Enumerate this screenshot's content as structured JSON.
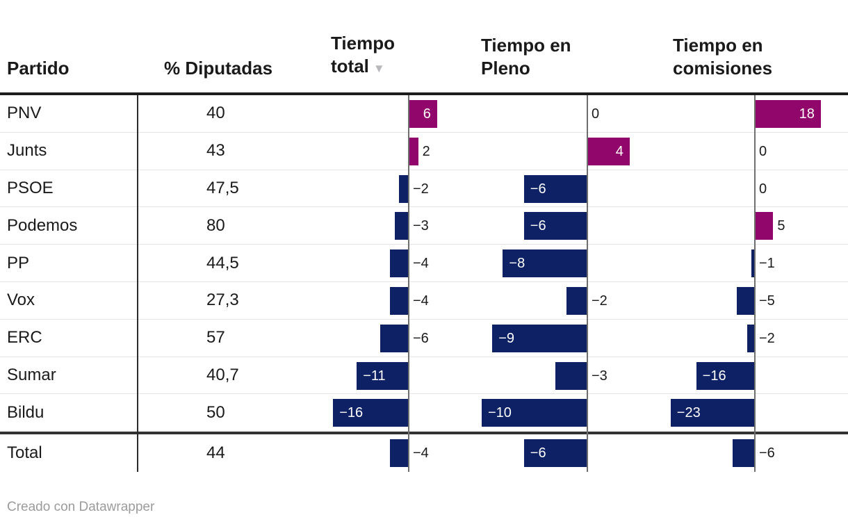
{
  "header": {
    "partido": "Partido",
    "diputadas": "% Diputadas",
    "tiempo_total_line1": "Tiempo",
    "tiempo_total_line2": "total",
    "sort_icon": "▼",
    "pleno_line1": "Tiempo en",
    "pleno_line2": "Pleno",
    "comisiones_line1": "Tiempo en",
    "comisiones_line2": "comisiones"
  },
  "footer": {
    "credit": "Creado con Datawrapper"
  },
  "colors": {
    "positive_bar": "#90066b",
    "negative_bar": "#0e2165",
    "zero_line": "#6e6e6e",
    "divider": "#2b2b2b",
    "row_separator": "#e4e4e4",
    "header_text": "#1a1a1a",
    "credit_text": "#9b9b9b"
  },
  "rows": [
    {
      "party": "PNV",
      "diputadas": "40",
      "total": {
        "v": 6,
        "label": "6",
        "inside": true
      },
      "pleno": {
        "v": 0,
        "label": "0",
        "inside": false
      },
      "comisiones": {
        "v": 18,
        "label": "18",
        "inside": true
      }
    },
    {
      "party": "Junts",
      "diputadas": "43",
      "total": {
        "v": 2,
        "label": "2",
        "inside": false
      },
      "pleno": {
        "v": 4,
        "label": "4",
        "inside": true
      },
      "comisiones": {
        "v": 0,
        "label": "0",
        "inside": false
      }
    },
    {
      "party": "PSOE",
      "diputadas": "47,5",
      "total": {
        "v": -2,
        "label": "−2",
        "inside": false
      },
      "pleno": {
        "v": -6,
        "label": "−6",
        "inside": true
      },
      "comisiones": {
        "v": 0,
        "label": "0",
        "inside": false
      }
    },
    {
      "party": "Podemos",
      "diputadas": "80",
      "total": {
        "v": -3,
        "label": "−3",
        "inside": false
      },
      "pleno": {
        "v": -6,
        "label": "−6",
        "inside": true
      },
      "comisiones": {
        "v": 5,
        "label": "5",
        "inside": false
      }
    },
    {
      "party": "PP",
      "diputadas": "44,5",
      "total": {
        "v": -4,
        "label": "−4",
        "inside": false
      },
      "pleno": {
        "v": -8,
        "label": "−8",
        "inside": true
      },
      "comisiones": {
        "v": -1,
        "label": "−1",
        "inside": false
      }
    },
    {
      "party": "Vox",
      "diputadas": "27,3",
      "total": {
        "v": -4,
        "label": "−4",
        "inside": false
      },
      "pleno": {
        "v": -2,
        "label": "−2",
        "inside": false
      },
      "comisiones": {
        "v": -5,
        "label": "−5",
        "inside": false
      }
    },
    {
      "party": "ERC",
      "diputadas": "57",
      "total": {
        "v": -6,
        "label": "−6",
        "inside": false
      },
      "pleno": {
        "v": -9,
        "label": "−9",
        "inside": true
      },
      "comisiones": {
        "v": -2,
        "label": "−2",
        "inside": false
      }
    },
    {
      "party": "Sumar",
      "diputadas": "40,7",
      "total": {
        "v": -11,
        "label": "−11",
        "inside": true
      },
      "pleno": {
        "v": -3,
        "label": "−3",
        "inside": false
      },
      "comisiones": {
        "v": -16,
        "label": "−16",
        "inside": true
      }
    },
    {
      "party": "Bildu",
      "diputadas": "50",
      "total": {
        "v": -16,
        "label": "−16",
        "inside": true
      },
      "pleno": {
        "v": -10,
        "label": "−10",
        "inside": true
      },
      "comisiones": {
        "v": -23,
        "label": "−23",
        "inside": true
      }
    },
    {
      "party": "Total",
      "diputadas": "44",
      "total": {
        "v": -4,
        "label": "−4",
        "inside": false
      },
      "pleno": {
        "v": -6,
        "label": "−6",
        "inside": true
      },
      "comisiones": {
        "v": -6,
        "label": "−6",
        "inside": false
      }
    }
  ],
  "chart_data": {
    "type": "table",
    "columns": [
      "Partido",
      "% Diputadas",
      "Tiempo total",
      "Tiempo en Pleno",
      "Tiempo en comisiones"
    ],
    "rows": [
      [
        "PNV",
        40,
        6,
        0,
        18
      ],
      [
        "Junts",
        43,
        2,
        4,
        0
      ],
      [
        "PSOE",
        47.5,
        -2,
        -6,
        0
      ],
      [
        "Podemos",
        80,
        -3,
        -6,
        5
      ],
      [
        "PP",
        44.5,
        -4,
        -8,
        -1
      ],
      [
        "Vox",
        27.3,
        -4,
        -2,
        -5
      ],
      [
        "ERC",
        57,
        -6,
        -9,
        -2
      ],
      [
        "Sumar",
        40.7,
        -11,
        -3,
        -16
      ],
      [
        "Bildu",
        50,
        -16,
        -10,
        -23
      ],
      [
        "Total",
        44,
        -4,
        -6,
        -6
      ]
    ],
    "sorted_by": "Tiempo total",
    "sort_direction": "descending",
    "bar_columns": [
      "Tiempo total",
      "Tiempo en Pleno",
      "Tiempo en comisiones"
    ],
    "bar_color_positive": "#90066b",
    "bar_color_negative": "#0e2165",
    "axis_ranges": {
      "Tiempo total": [
        -16,
        6
      ],
      "Tiempo en Pleno": [
        -10,
        4
      ],
      "Tiempo en comisiones": [
        -23,
        18
      ]
    },
    "footer": "Creado con Datawrapper"
  }
}
